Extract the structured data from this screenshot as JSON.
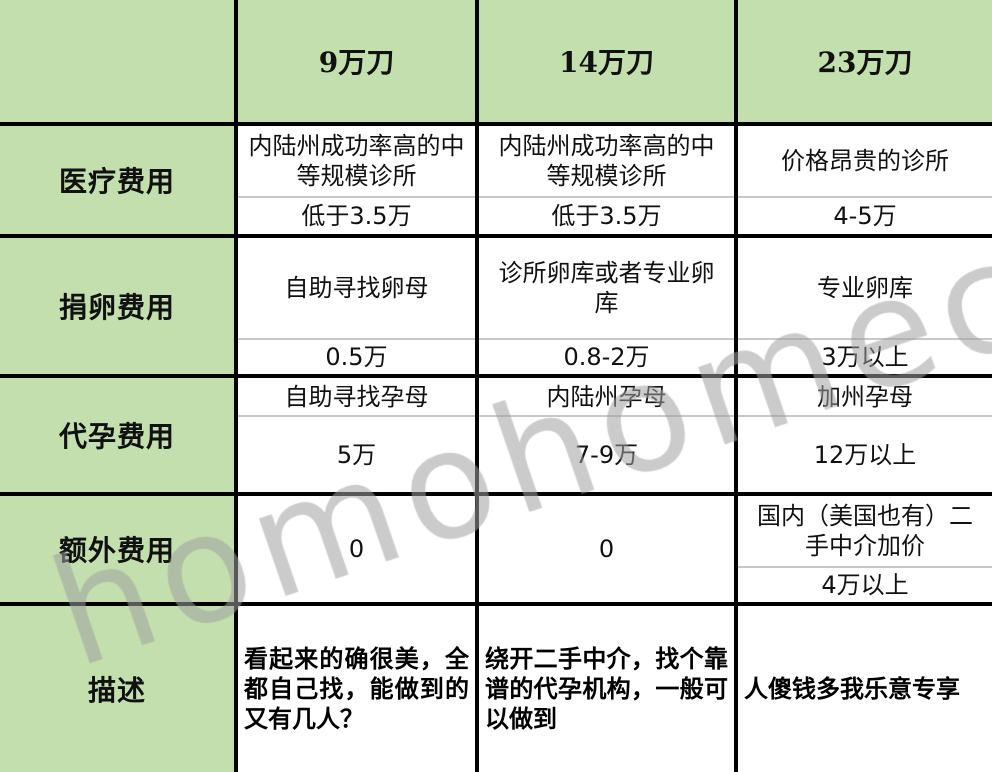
{
  "header": {
    "corner": "",
    "columns": [
      "9万刀",
      "14万刀",
      "23万刀"
    ]
  },
  "rows": [
    {
      "label": "医疗费用",
      "cells": [
        [
          "内陆州成功率高的中等规模诊所",
          "低于3.5万"
        ],
        [
          "内陆州成功率高的中等规模诊所",
          "低于3.5万"
        ],
        [
          "价格昂贵的诊所",
          "4-5万"
        ]
      ]
    },
    {
      "label": "捐卵费用",
      "cells": [
        [
          "自助寻找卵母",
          "0.5万"
        ],
        [
          "诊所卵库或者专业卵库",
          "0.8-2万"
        ],
        [
          "专业卵库",
          "3万以上"
        ]
      ]
    },
    {
      "label": "代孕费用",
      "cells": [
        [
          "自助寻找孕母",
          "5万"
        ],
        [
          "内陆州孕母",
          "7-9万"
        ],
        [
          "加州孕母",
          "12万以上"
        ]
      ]
    },
    {
      "label": "额外费用",
      "cells": [
        [
          "0"
        ],
        [
          "0"
        ],
        [
          "国内（美国也有）二手中介加价",
          "4万以上"
        ]
      ]
    },
    {
      "label": "描述",
      "cells": [
        [
          "看起来的确很美，全都自己找，能做到的又有几人？"
        ],
        [
          "绕开二手中介，找个靠谱的代孕机构，一般可以做到"
        ],
        [
          "人傻钱多我乐意专享"
        ]
      ]
    }
  ],
  "watermark": "homohomeclub",
  "colors": {
    "header_green": "#c4dfae",
    "border": "#000000",
    "sub_divider": "#c8c8c8"
  }
}
